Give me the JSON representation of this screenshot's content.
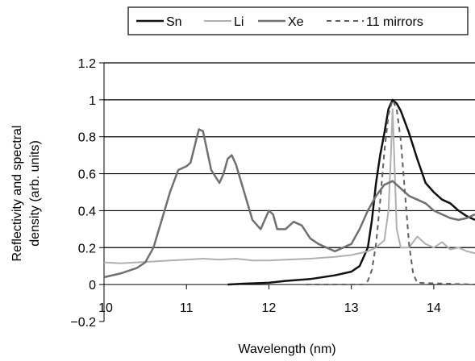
{
  "chart_data": {
    "type": "line",
    "title": "",
    "xlabel": "Wavelength (nm)",
    "ylabel_lines": [
      "Reflectivity and spectral",
      "density (arb. units)"
    ],
    "xlim": [
      10,
      14.5
    ],
    "ylim": [
      -0.2,
      1.2
    ],
    "x_ticks": [
      10,
      11,
      12,
      13,
      14
    ],
    "x_tick_labels": [
      "10",
      "11",
      "12",
      "13",
      "14"
    ],
    "y_ticks": [
      -0.2,
      0,
      0.2,
      0.4,
      0.6,
      0.8,
      1,
      1.2
    ],
    "y_tick_labels": [
      "−0.2",
      "0",
      "0.2",
      "0.4",
      "0.6",
      "0.8",
      "1",
      "1.2"
    ],
    "grid": "horizontal",
    "legend_position": "top",
    "series": [
      {
        "name": "Sn",
        "color": "#111111",
        "dash": "solid",
        "width": 2.5,
        "points": [
          [
            11.5,
            0
          ],
          [
            11.7,
            0.005
          ],
          [
            12.0,
            0.01
          ],
          [
            12.2,
            0.02
          ],
          [
            12.5,
            0.03
          ],
          [
            12.8,
            0.05
          ],
          [
            13.0,
            0.07
          ],
          [
            13.1,
            0.1
          ],
          [
            13.2,
            0.2
          ],
          [
            13.25,
            0.35
          ],
          [
            13.3,
            0.55
          ],
          [
            13.35,
            0.7
          ],
          [
            13.4,
            0.82
          ],
          [
            13.45,
            0.95
          ],
          [
            13.5,
            1.0
          ],
          [
            13.55,
            0.98
          ],
          [
            13.6,
            0.94
          ],
          [
            13.7,
            0.82
          ],
          [
            13.8,
            0.68
          ],
          [
            13.9,
            0.55
          ],
          [
            14.0,
            0.5
          ],
          [
            14.1,
            0.46
          ],
          [
            14.2,
            0.44
          ],
          [
            14.3,
            0.4
          ],
          [
            14.4,
            0.37
          ],
          [
            14.5,
            0.35
          ]
        ]
      },
      {
        "name": "Li",
        "color": "#b0b0b0",
        "dash": "solid",
        "width": 2,
        "points": [
          [
            10.0,
            0.12
          ],
          [
            10.2,
            0.115
          ],
          [
            10.4,
            0.12
          ],
          [
            10.6,
            0.125
          ],
          [
            10.8,
            0.13
          ],
          [
            11.0,
            0.135
          ],
          [
            11.2,
            0.14
          ],
          [
            11.4,
            0.135
          ],
          [
            11.6,
            0.14
          ],
          [
            11.8,
            0.13
          ],
          [
            12.0,
            0.13
          ],
          [
            12.2,
            0.135
          ],
          [
            12.5,
            0.14
          ],
          [
            12.8,
            0.15
          ],
          [
            13.0,
            0.16
          ],
          [
            13.2,
            0.18
          ],
          [
            13.3,
            0.2
          ],
          [
            13.4,
            0.24
          ],
          [
            13.45,
            0.4
          ],
          [
            13.48,
            0.7
          ],
          [
            13.5,
            0.95
          ],
          [
            13.52,
            0.7
          ],
          [
            13.55,
            0.3
          ],
          [
            13.6,
            0.2
          ],
          [
            13.7,
            0.2
          ],
          [
            13.8,
            0.26
          ],
          [
            13.9,
            0.22
          ],
          [
            14.0,
            0.2
          ],
          [
            14.1,
            0.23
          ],
          [
            14.2,
            0.19
          ],
          [
            14.3,
            0.2
          ],
          [
            14.4,
            0.18
          ],
          [
            14.5,
            0.17
          ]
        ]
      },
      {
        "name": "Xe",
        "color": "#707070",
        "dash": "solid",
        "width": 2.5,
        "points": [
          [
            10.0,
            0.04
          ],
          [
            10.2,
            0.06
          ],
          [
            10.4,
            0.09
          ],
          [
            10.5,
            0.12
          ],
          [
            10.6,
            0.2
          ],
          [
            10.7,
            0.35
          ],
          [
            10.8,
            0.5
          ],
          [
            10.9,
            0.62
          ],
          [
            11.0,
            0.64
          ],
          [
            11.05,
            0.66
          ],
          [
            11.1,
            0.75
          ],
          [
            11.15,
            0.84
          ],
          [
            11.2,
            0.83
          ],
          [
            11.3,
            0.62
          ],
          [
            11.4,
            0.55
          ],
          [
            11.45,
            0.6
          ],
          [
            11.5,
            0.68
          ],
          [
            11.55,
            0.7
          ],
          [
            11.6,
            0.65
          ],
          [
            11.7,
            0.5
          ],
          [
            11.8,
            0.35
          ],
          [
            11.9,
            0.3
          ],
          [
            11.95,
            0.35
          ],
          [
            12.0,
            0.4
          ],
          [
            12.05,
            0.38
          ],
          [
            12.1,
            0.3
          ],
          [
            12.2,
            0.3
          ],
          [
            12.3,
            0.34
          ],
          [
            12.4,
            0.32
          ],
          [
            12.5,
            0.25
          ],
          [
            12.6,
            0.22
          ],
          [
            12.7,
            0.2
          ],
          [
            12.8,
            0.18
          ],
          [
            12.9,
            0.2
          ],
          [
            13.0,
            0.22
          ],
          [
            13.1,
            0.3
          ],
          [
            13.2,
            0.4
          ],
          [
            13.3,
            0.48
          ],
          [
            13.4,
            0.54
          ],
          [
            13.5,
            0.56
          ],
          [
            13.6,
            0.52
          ],
          [
            13.7,
            0.48
          ],
          [
            13.8,
            0.46
          ],
          [
            13.9,
            0.44
          ],
          [
            14.0,
            0.4
          ],
          [
            14.1,
            0.38
          ],
          [
            14.2,
            0.36
          ],
          [
            14.3,
            0.35
          ],
          [
            14.4,
            0.36
          ],
          [
            14.5,
            0.38
          ]
        ]
      },
      {
        "name": "11 mirrors",
        "color": "#606060",
        "dash": "dashed",
        "width": 2,
        "points": [
          [
            12.45,
            0
          ],
          [
            13.15,
            0
          ],
          [
            13.2,
            0.02
          ],
          [
            13.25,
            0.08
          ],
          [
            13.3,
            0.22
          ],
          [
            13.35,
            0.45
          ],
          [
            13.4,
            0.72
          ],
          [
            13.45,
            0.92
          ],
          [
            13.5,
            1.0
          ],
          [
            13.55,
            0.95
          ],
          [
            13.6,
            0.78
          ],
          [
            13.65,
            0.5
          ],
          [
            13.7,
            0.22
          ],
          [
            13.75,
            0.06
          ],
          [
            13.8,
            0.01
          ],
          [
            14.5,
            0
          ]
        ]
      }
    ]
  }
}
